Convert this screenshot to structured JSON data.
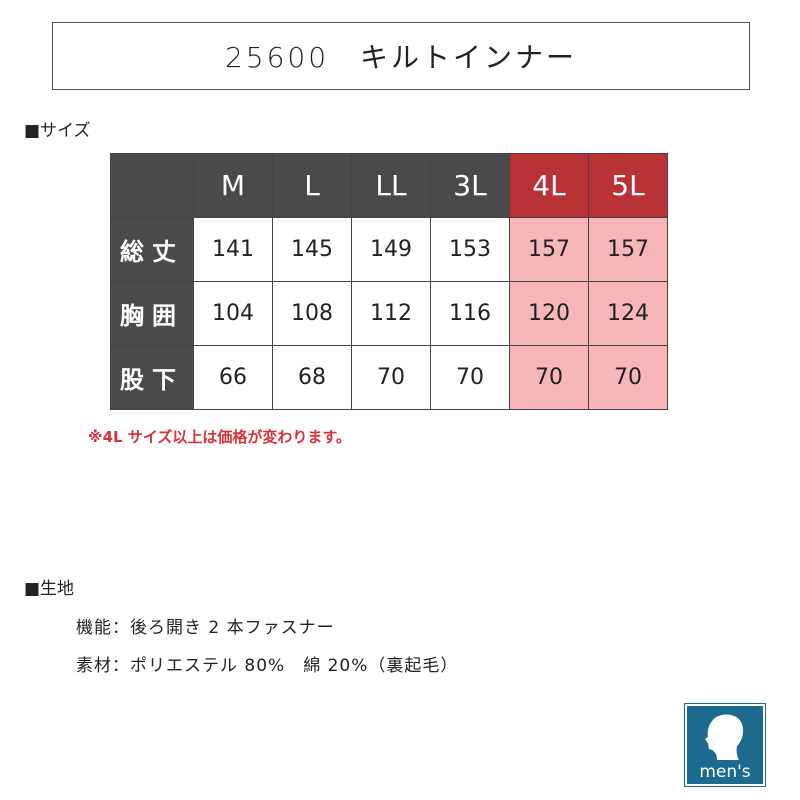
{
  "title": "25600　キルトインナー",
  "size_heading": "■サイズ",
  "table": {
    "columns": [
      "M",
      "L",
      "LL",
      "3L",
      "4L",
      "5L"
    ],
    "rows": [
      {
        "label": "総丈",
        "values": [
          "141",
          "145",
          "149",
          "153",
          "157",
          "157"
        ]
      },
      {
        "label": "胸囲",
        "values": [
          "104",
          "108",
          "112",
          "116",
          "120",
          "124"
        ]
      },
      {
        "label": "股下",
        "values": [
          "66",
          "68",
          "70",
          "70",
          "70",
          "70"
        ]
      }
    ],
    "highlight_columns": [
      "4L",
      "5L"
    ]
  },
  "note": "※4L サイズ以上は価格が変わります。",
  "fabric_heading": "■生地",
  "function_line": "機能：後ろ開き 2 本ファスナー",
  "material_line": "素材：ポリエステル 80%　綿 20%（裏起毛）",
  "logo_text": "men's",
  "colors": {
    "header": "#4a4a4a",
    "highlight_header": "#b83236",
    "highlight_cell": "#f7b7ba",
    "note": "#d9303a",
    "logo": "#1c6a8d"
  }
}
